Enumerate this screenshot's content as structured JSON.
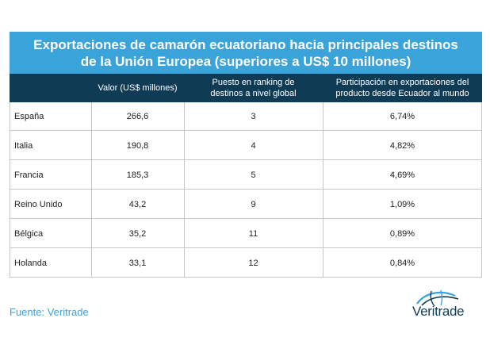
{
  "title": {
    "line1": "Exportaciones de camarón ecuatoriano hacia principales destinos",
    "line2": "de la Unión Europea (superiores a US$ 10 millones)"
  },
  "headers": {
    "country": "",
    "value": "Valor (US$ millones)",
    "ranking": "Puesto en ranking de destinos a nivel global",
    "share": "Participación en exportaciones del producto desde Ecuador al mundo"
  },
  "rows": [
    {
      "country": "España",
      "value": "266,6",
      "ranking": "3",
      "share": "6,74%"
    },
    {
      "country": "Italia",
      "value": "190,8",
      "ranking": "4",
      "share": "4,82%"
    },
    {
      "country": "Francia",
      "value": "185,3",
      "ranking": "5",
      "share": "4,69%"
    },
    {
      "country": "Reino Unido",
      "value": "43,2",
      "ranking": "9",
      "share": "1,09%"
    },
    {
      "country": "Bélgica",
      "value": "35,2",
      "ranking": "11",
      "share": "0,89%"
    },
    {
      "country": "Holanda",
      "value": "33,1",
      "ranking": "12",
      "share": "0,84%"
    }
  ],
  "source": "Fuente: Veritrade",
  "logo": {
    "text": "Veritrade",
    "icon": "globe-swoosh-icon"
  },
  "colors": {
    "title_bg": "#3aa3da",
    "header_bg": "#0f3b55",
    "source_text": "#3aa3da",
    "grid": "#c7c7c7"
  }
}
